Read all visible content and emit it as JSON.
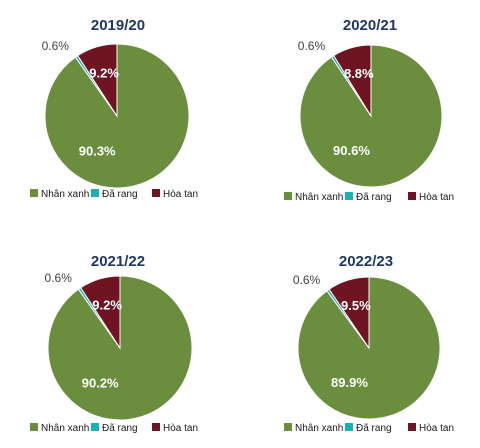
{
  "chart_data": [
    {
      "type": "pie",
      "title": "2019/20",
      "categories": [
        "Nhân xanh",
        "Đã rang",
        "Hòa tan"
      ],
      "values": [
        90.3,
        0.6,
        9.2
      ],
      "labels": [
        "90.3%",
        "0.6%",
        "9.2%"
      ],
      "colors": [
        "#6a8e3e",
        "#19b0b8",
        "#6e1423"
      ],
      "legend": "bottom"
    },
    {
      "type": "pie",
      "title": "2020/21",
      "categories": [
        "Nhân xanh",
        "Đã rang",
        "Hòa tan"
      ],
      "values": [
        90.6,
        0.6,
        8.8
      ],
      "labels": [
        "90.6%",
        "0.6%",
        "8.8%"
      ],
      "colors": [
        "#6a8e3e",
        "#19b0b8",
        "#6e1423"
      ],
      "legend": "bottom"
    },
    {
      "type": "pie",
      "title": "2021/22",
      "categories": [
        "Nhân xanh",
        "Đã rang",
        "Hòa tan"
      ],
      "values": [
        90.2,
        0.6,
        9.2
      ],
      "labels": [
        "90.2%",
        "0.6%",
        "9.2%"
      ],
      "colors": [
        "#6a8e3e",
        "#19b0b8",
        "#6e1423"
      ],
      "legend": "bottom"
    },
    {
      "type": "pie",
      "title": "2022/23",
      "categories": [
        "Nhân xanh",
        "Đã rang",
        "Hòa tan"
      ],
      "values": [
        89.9,
        0.6,
        9.5
      ],
      "labels": [
        "89.9%",
        "0.6%",
        "9.5%"
      ],
      "colors": [
        "#6a8e3e",
        "#19b0b8",
        "#6e1423"
      ],
      "legend": "bottom"
    }
  ]
}
